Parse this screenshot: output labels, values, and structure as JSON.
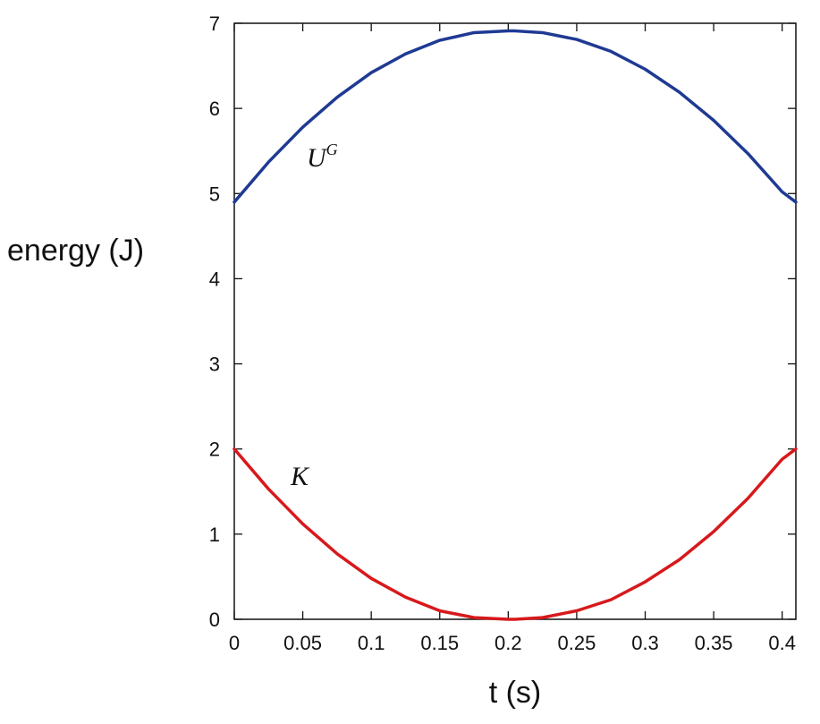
{
  "chart_data": {
    "type": "line",
    "xlabel": "t (s)",
    "ylabel": "energy (J)",
    "xlim": [
      0,
      0.41
    ],
    "ylim": [
      0,
      7
    ],
    "x_ticks": [
      "0",
      "0.05",
      "0.1",
      "0.15",
      "0.2",
      "0.25",
      "0.3",
      "0.35",
      "0.4"
    ],
    "y_ticks": [
      "0",
      "1",
      "2",
      "3",
      "4",
      "5",
      "6",
      "7"
    ],
    "grid": false,
    "series": [
      {
        "label": "U",
        "label_sup": "G",
        "color": "#1f3a93",
        "x": [
          0,
          0.025,
          0.05,
          0.075,
          0.1,
          0.125,
          0.15,
          0.175,
          0.2,
          0.205,
          0.225,
          0.25,
          0.275,
          0.3,
          0.325,
          0.35,
          0.375,
          0.4,
          0.41
        ],
        "y": [
          4.9,
          5.37,
          5.78,
          6.13,
          6.42,
          6.64,
          6.8,
          6.89,
          6.91,
          6.91,
          6.89,
          6.81,
          6.67,
          6.46,
          6.19,
          5.86,
          5.47,
          5.02,
          4.9
        ]
      },
      {
        "label": "K",
        "color": "#d7191c",
        "x": [
          0,
          0.025,
          0.05,
          0.075,
          0.1,
          0.125,
          0.15,
          0.175,
          0.2,
          0.205,
          0.225,
          0.25,
          0.275,
          0.3,
          0.325,
          0.35,
          0.375,
          0.4,
          0.41
        ],
        "y": [
          2.0,
          1.53,
          1.12,
          0.77,
          0.48,
          0.26,
          0.1,
          0.02,
          0.0,
          0.0,
          0.02,
          0.1,
          0.23,
          0.44,
          0.7,
          1.03,
          1.42,
          1.88,
          2.0
        ]
      }
    ]
  }
}
